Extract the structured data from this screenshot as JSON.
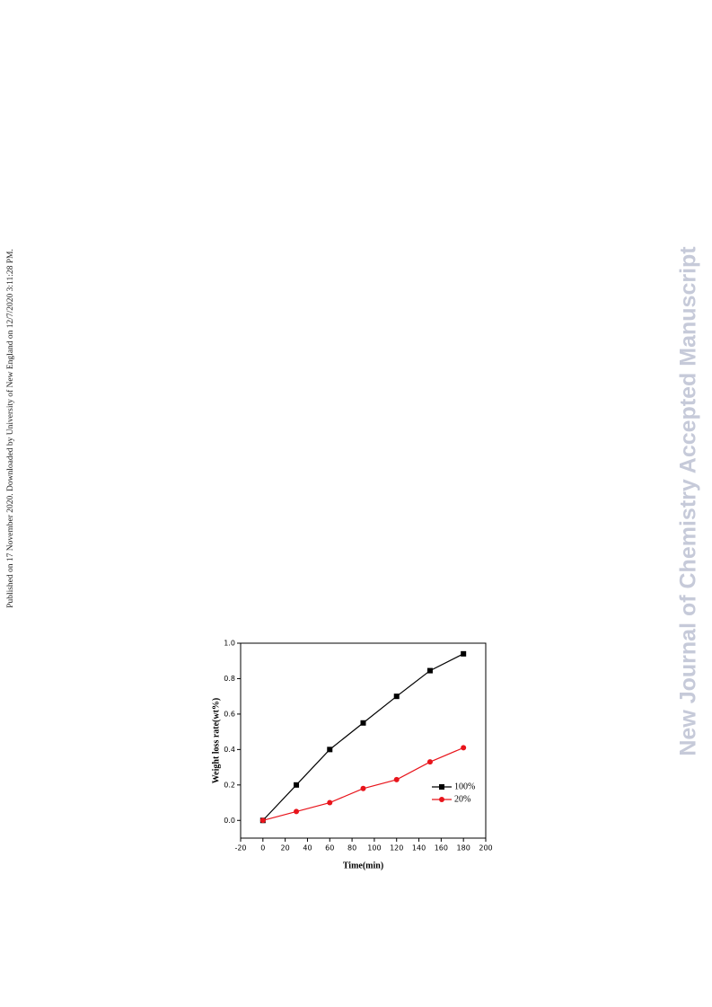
{
  "sidebar": "Published on 17 November 2020. Downloaded by University of New England on 12/7/2020 3:11:28 PM.",
  "watermark": "New Journal of Chemistry Accepted Manuscript",
  "chart_data": {
    "type": "line",
    "x_label": "Time(min)",
    "y_label": "Weight loss rate(wt%)",
    "x": [
      0,
      30,
      60,
      90,
      120,
      150,
      180
    ],
    "series": [
      {
        "name": "100%",
        "color": "#000000",
        "marker": "square",
        "values": [
          0,
          0.2,
          0.4,
          0.55,
          0.7,
          0.845,
          0.94
        ]
      },
      {
        "name": "20%",
        "color": "#e8141b",
        "marker": "circle",
        "values": [
          0,
          0.05,
          0.1,
          0.18,
          0.23,
          0.33,
          0.41
        ]
      }
    ],
    "xlim": [
      -20,
      200
    ],
    "xticks": [
      -20,
      0,
      20,
      40,
      60,
      80,
      100,
      120,
      140,
      160,
      180,
      200
    ],
    "ylim": [
      -0.1,
      1.0
    ],
    "yticks": [
      {
        "value": 0,
        "label": "0.0"
      },
      0.2,
      0.4,
      0.6,
      0.8,
      {
        "value": 1,
        "label": "1.0"
      }
    ],
    "legend": "right"
  }
}
